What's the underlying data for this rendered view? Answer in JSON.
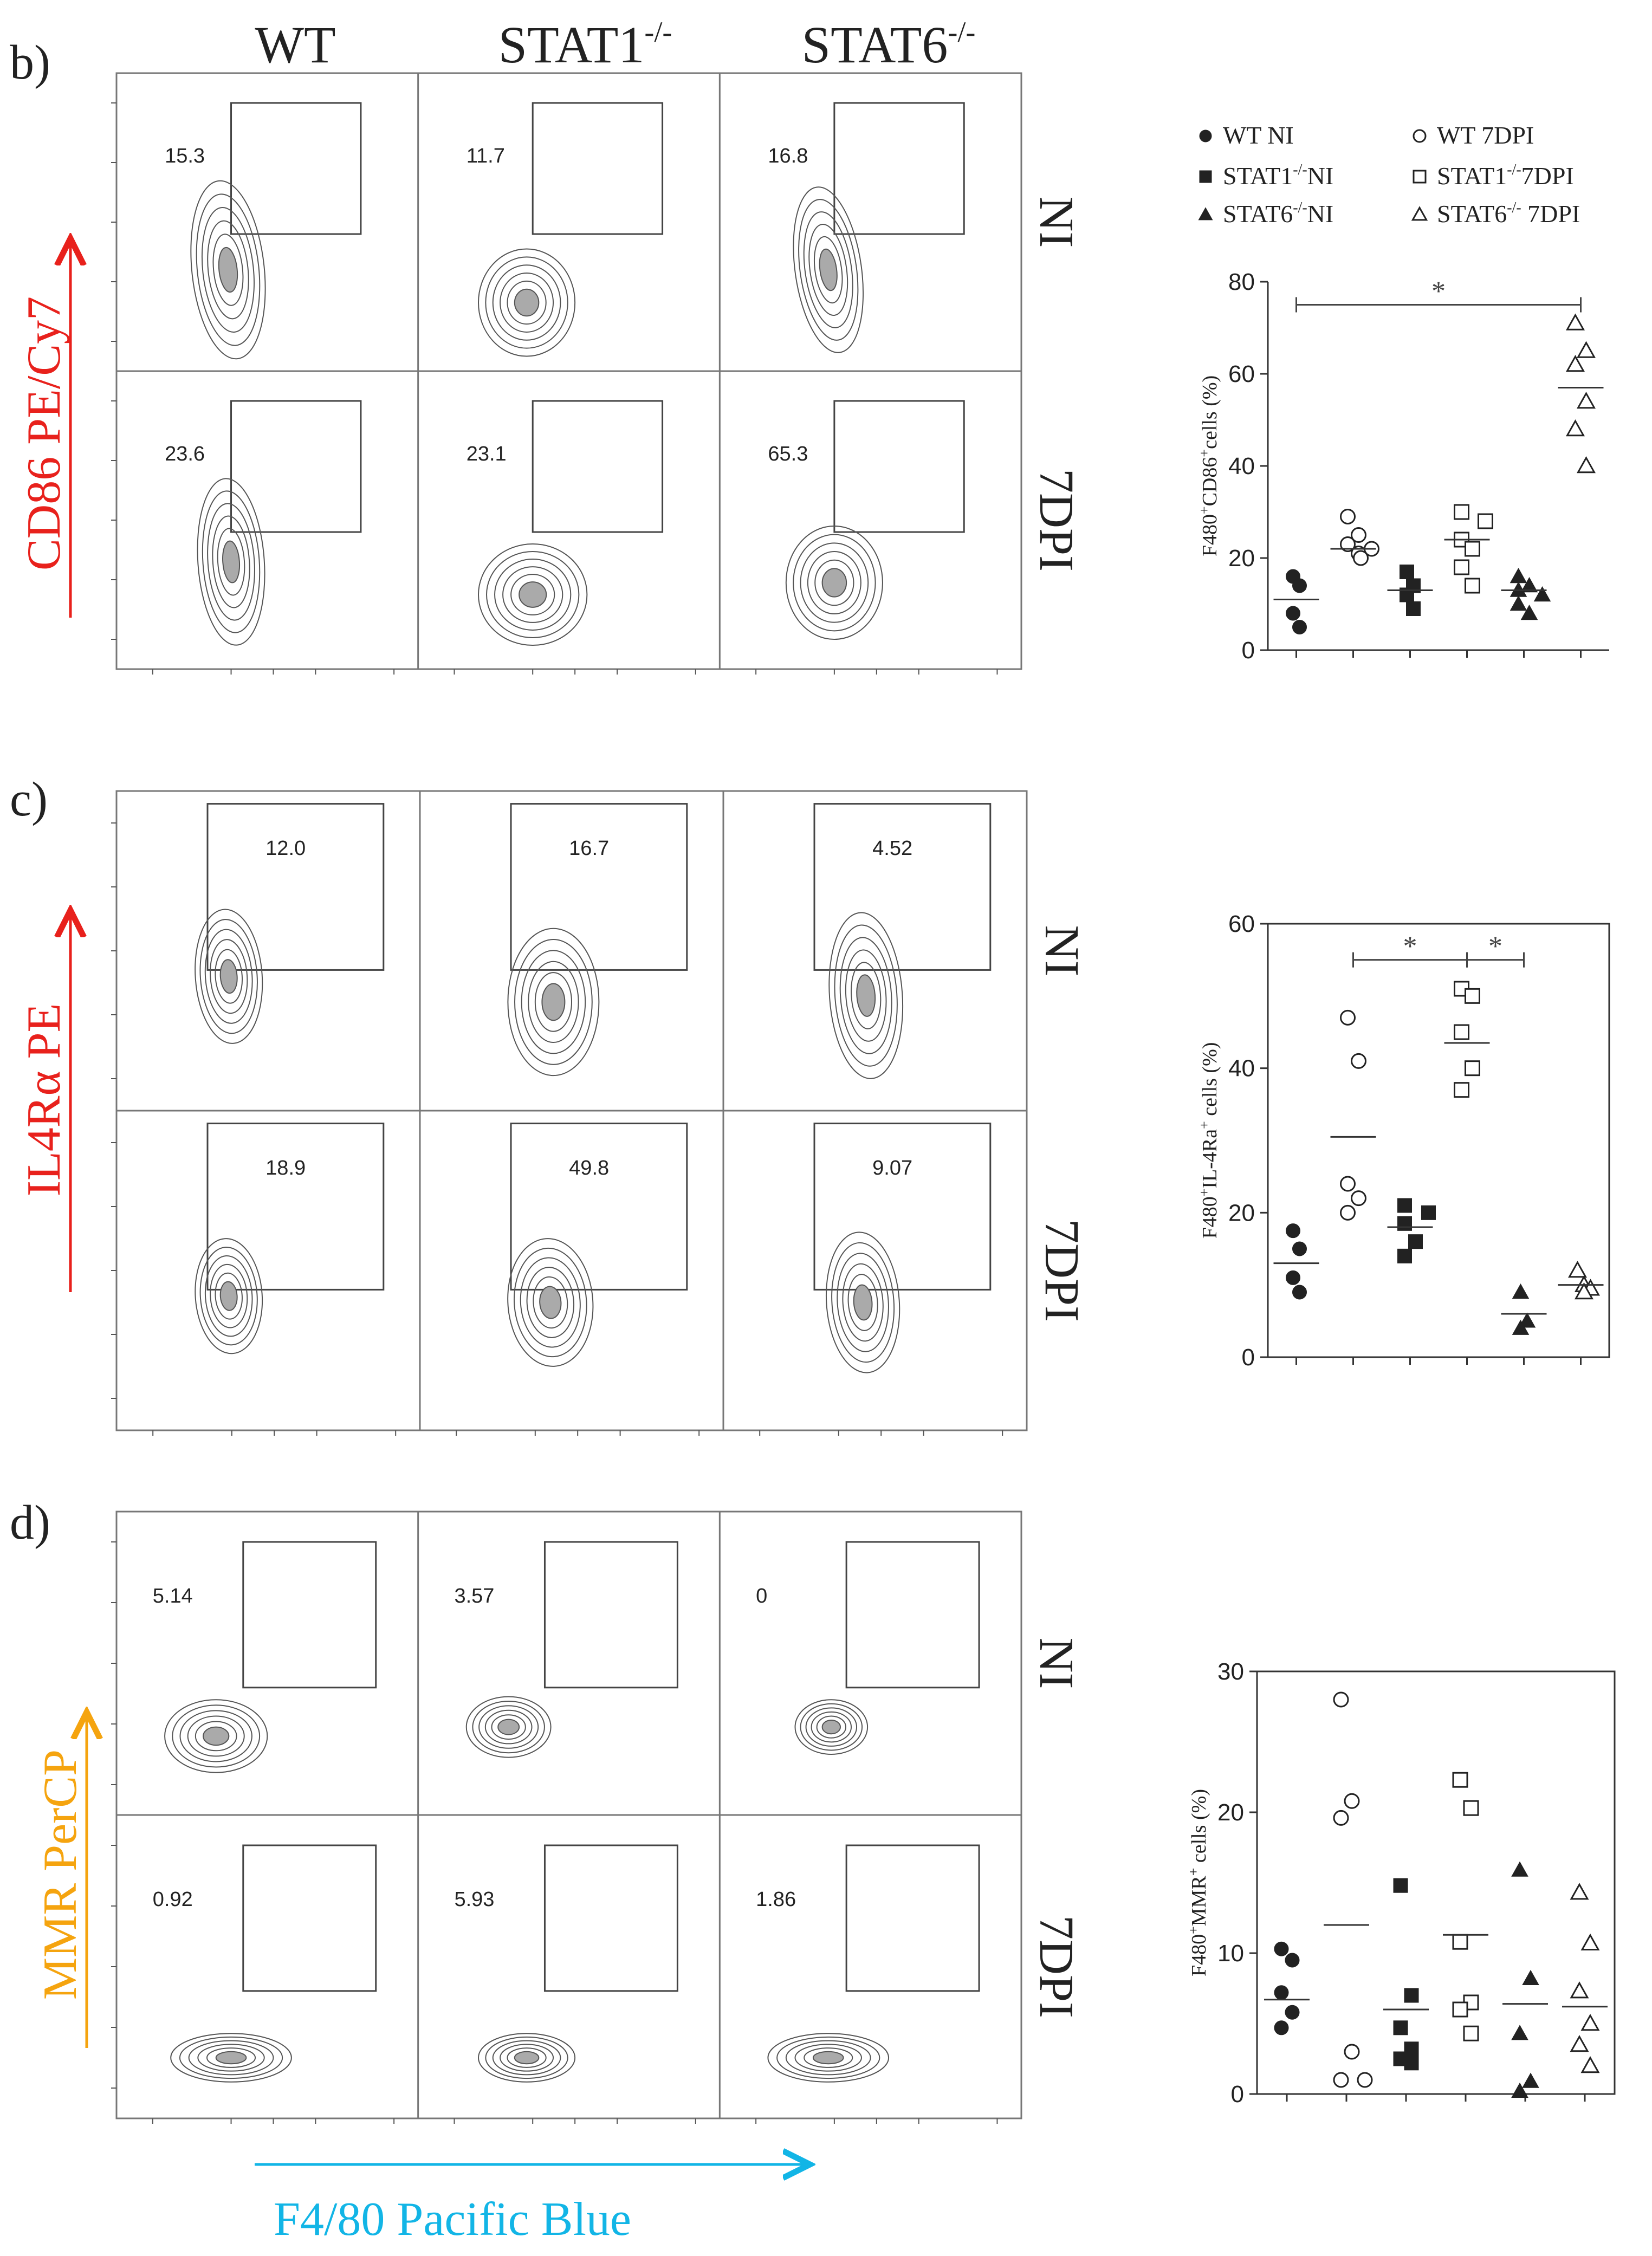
{
  "colors": {
    "cd86": "#e8211c",
    "il4ra": "#e8211c",
    "mmr": "#f5a40f",
    "f480": "#12b5e6",
    "ink": "#222222"
  },
  "columns": [
    "WT",
    "STAT1",
    "STAT6"
  ],
  "column_sup": "-/-",
  "rows": [
    "NI",
    "7DPI"
  ],
  "x_axis_label": "F4/80 Pacific Blue",
  "chart_data": [
    {
      "panel": "b)",
      "type": "scatter",
      "flow_axis_label": "CD86 PE/Cy7",
      "gates": [
        [
          "15.3",
          "11.7",
          "16.8"
        ],
        [
          "23.6",
          "23.1",
          "65.3"
        ]
      ],
      "ylabel": "F480+CD86+cells (%)",
      "ylabel_parts": [
        "F480",
        "+",
        "CD86",
        "+",
        "cells (%)"
      ],
      "ylim": [
        0,
        80
      ],
      "yticks": [
        "0",
        "20",
        "40",
        "60",
        "80"
      ],
      "legend": [
        {
          "name": "WT NI",
          "base": "WT",
          "sup": "",
          "rest": " NI",
          "marker": "circle",
          "filled": true
        },
        {
          "name": "WT 7DPI",
          "base": "WT",
          "sup": "",
          "rest": " 7DPI",
          "marker": "circle",
          "filled": false
        },
        {
          "name": "STAT1-/-NI",
          "base": "STAT1",
          "sup": "-/-",
          "rest": "NI",
          "marker": "square",
          "filled": true
        },
        {
          "name": "STAT1-/-7DPI",
          "base": "STAT1",
          "sup": "-/-",
          "rest": "7DPI",
          "marker": "square",
          "filled": false
        },
        {
          "name": "STAT6-/-NI",
          "base": "STAT6",
          "sup": "-/-",
          "rest": "NI",
          "marker": "triangle",
          "filled": true
        },
        {
          "name": "STAT6-/- 7DPI",
          "base": "STAT6",
          "sup": "-/-",
          "rest": " 7DPI",
          "marker": "triangle",
          "filled": false
        }
      ],
      "series": [
        {
          "name": "WT NI",
          "values": [
            16,
            14,
            8,
            5
          ],
          "mean": 11
        },
        {
          "name": "WT 7DPI",
          "values": [
            29,
            25,
            23,
            21,
            20,
            22
          ],
          "mean": 22
        },
        {
          "name": "STAT1-/-NI",
          "values": [
            17,
            14,
            12,
            9
          ],
          "mean": 13
        },
        {
          "name": "STAT1-/-7DPI",
          "values": [
            30,
            28,
            24,
            22,
            18,
            14
          ],
          "mean": 24
        },
        {
          "name": "STAT6-/-NI",
          "values": [
            16,
            14,
            13,
            12,
            10,
            8
          ],
          "mean": 13
        },
        {
          "name": "STAT6-/- 7DPI",
          "values": [
            71,
            65,
            62,
            54,
            48,
            40
          ],
          "mean": 57
        }
      ],
      "significance": [
        {
          "from": 0,
          "to": 5,
          "label": "*"
        }
      ]
    },
    {
      "panel": "c)",
      "type": "scatter",
      "flow_axis_label": "IL4Rα PE",
      "gates": [
        [
          "12.0",
          "16.7",
          "4.52"
        ],
        [
          "18.9",
          "49.8",
          "9.07"
        ]
      ],
      "ylabel": "F480+IL-4Ra+ cells (%)",
      "ylabel_parts": [
        "F480",
        "+",
        "IL-4Ra",
        "+",
        " cells (%)"
      ],
      "ylim": [
        0,
        60
      ],
      "yticks": [
        "0",
        "20",
        "40",
        "60"
      ],
      "series": [
        {
          "name": "WT NI",
          "values": [
            17.5,
            15,
            11,
            9
          ],
          "mean": 13
        },
        {
          "name": "WT 7DPI",
          "values": [
            47,
            41,
            24,
            22,
            20
          ],
          "mean": 30.5
        },
        {
          "name": "STAT1-/-NI",
          "values": [
            21,
            20,
            18.5,
            16,
            14
          ],
          "mean": 18
        },
        {
          "name": "STAT1-/-7DPI",
          "values": [
            51,
            50,
            45,
            40,
            37
          ],
          "mean": 43.5
        },
        {
          "name": "STAT6-/-NI",
          "values": [
            9,
            5,
            4
          ],
          "mean": 6
        },
        {
          "name": "STAT6-/- 7DPI",
          "values": [
            12,
            10,
            9.5,
            9
          ],
          "mean": 10
        }
      ],
      "significance": [
        {
          "from": 1,
          "to": 3,
          "label": "*"
        },
        {
          "from": 3,
          "to": 4,
          "label": "*"
        }
      ]
    },
    {
      "panel": "d)",
      "type": "scatter",
      "flow_axis_label": "MMR PerCP",
      "gates": [
        [
          "5.14",
          "3.57",
          "0"
        ],
        [
          "0.92",
          "5.93",
          "1.86"
        ]
      ],
      "ylabel": "F480+MMR+ cells (%)",
      "ylabel_parts": [
        "F480",
        "+",
        "MMR",
        "+",
        " cells (%)"
      ],
      "ylim": [
        0,
        30
      ],
      "yticks": [
        "0",
        "10",
        "20",
        "30"
      ],
      "series": [
        {
          "name": "WT NI",
          "values": [
            10.3,
            9.5,
            7.2,
            5.8,
            4.7
          ],
          "mean": 6.7
        },
        {
          "name": "WT 7DPI",
          "values": [
            28,
            20.8,
            19.6,
            3,
            1,
            1
          ],
          "mean": 12
        },
        {
          "name": "STAT1-/-NI",
          "values": [
            14.8,
            7,
            4.7,
            3.2,
            2.5,
            2.2
          ],
          "mean": 6
        },
        {
          "name": "STAT1-/-7DPI",
          "values": [
            22.3,
            20.3,
            10.8,
            6.5,
            6,
            4.3
          ],
          "mean": 11.3
        },
        {
          "name": "STAT6-/-NI",
          "values": [
            15.9,
            8.2,
            4.3,
            0.9,
            0.2
          ],
          "mean": 6.4
        },
        {
          "name": "STAT6-/- 7DPI",
          "values": [
            14.3,
            10.7,
            7.3,
            5,
            3.5,
            2
          ],
          "mean": 6.2
        }
      ],
      "significance": []
    }
  ]
}
